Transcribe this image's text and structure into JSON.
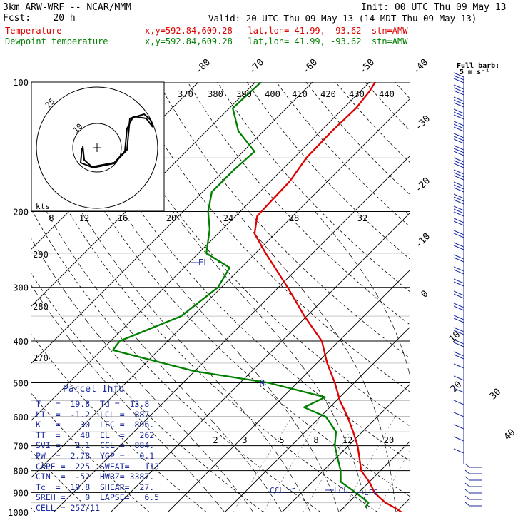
{
  "header": {
    "model": "3km ARW-WRF -- NCAR/MMM",
    "init": "Init: 00 UTC Thu 09 May 13",
    "fcst": "Fcst:    20 h",
    "valid": "Valid: 20 UTC Thu 09 May 13 (14 MDT Thu 09 May 13)",
    "temp_label": "Temperature",
    "temp_loc": "x,y=592.84,609.28   lat,lon= 41.99, -93.62  stn=AMW",
    "dew_label": "Dewpoint temperature",
    "dew_loc": "x,y=592.84,609.28   lat,lon= 41.99, -93.62  stn=AMW"
  },
  "colors": {
    "temperature": "#e00000",
    "dewpoint": "#008000",
    "parcel": "#1c2ca0",
    "grid": "#000000"
  },
  "parcel_info": {
    "title": "Parcel Info",
    "rows": [
      "T   =  19.8  Td =  13.8",
      "LI  =  -1.2  LCL =  887.",
      "K   =    30  LFC =  896.",
      "TT  =    48  EL  =   262",
      "SVI =   2.1  CCL =  884.",
      "PW  =  2.78  YGP =   0.1",
      "CAPE =  225  SWEAT=   113",
      "CIN  =  -52  HWBZ= 3387.",
      "Tc  =  19.8  SHEAR=  27.",
      "SREH =    0  LAPSE=   6.5",
      "CELL = 252/11"
    ]
  },
  "chart_data": {
    "type": "skew-t",
    "pressure_ticks": [
      "100",
      "200",
      "300",
      "400",
      "500",
      "600",
      "700",
      "800",
      "900",
      "1000"
    ],
    "isotherm_labels": [
      "-80",
      "-70",
      "-60",
      "-50",
      "-40",
      "-30",
      "-20",
      "-10",
      "0",
      "10",
      "20",
      "30",
      "40"
    ],
    "theta_labels": [
      "370",
      "380",
      "390",
      "400",
      "410",
      "420",
      "430",
      "440"
    ],
    "theta_left_labels": [
      "290",
      "280",
      "270"
    ],
    "mixing_ratio_labels": [
      "2",
      "3",
      "5",
      "8",
      "12",
      "20"
    ],
    "hodograph": {
      "speed_unit": "kts",
      "ring_labels": [
        "25",
        "10"
      ],
      "speed_ticks": [
        "8",
        "12",
        "16",
        "20",
        "24",
        "28",
        "32"
      ]
    },
    "wind_key": {
      "line1": "Full barb:",
      "line2": "5 m s⁻¹"
    },
    "markers": {
      "el": "EL",
      "m": "M",
      "ccl": "CCL",
      "lcl": "LCL",
      "lfc": "LFC"
    },
    "temperature": [
      {
        "p": 1000,
        "t": 21.0
      },
      {
        "p": 985,
        "t": 19.8
      },
      {
        "p": 950,
        "t": 16.5
      },
      {
        "p": 925,
        "t": 14.6
      },
      {
        "p": 900,
        "t": 12.8
      },
      {
        "p": 850,
        "t": 10.0
      },
      {
        "p": 800,
        "t": 6.6
      },
      {
        "p": 750,
        "t": 4.2
      },
      {
        "p": 700,
        "t": 1.6
      },
      {
        "p": 650,
        "t": -1.6
      },
      {
        "p": 600,
        "t": -5.2
      },
      {
        "p": 550,
        "t": -9.4
      },
      {
        "p": 500,
        "t": -13.4
      },
      {
        "p": 450,
        "t": -18.2
      },
      {
        "p": 400,
        "t": -23.0
      },
      {
        "p": 350,
        "t": -30.4
      },
      {
        "p": 300,
        "t": -38.4
      },
      {
        "p": 250,
        "t": -48.2
      },
      {
        "p": 225,
        "t": -53.6
      },
      {
        "p": 205,
        "t": -56.2
      },
      {
        "p": 190,
        "t": -56.4
      },
      {
        "p": 170,
        "t": -56.6
      },
      {
        "p": 150,
        "t": -57.8
      },
      {
        "p": 130,
        "t": -58.0
      },
      {
        "p": 115,
        "t": -57.8
      },
      {
        "p": 105,
        "t": -58.4
      },
      {
        "p": 100,
        "t": -59.0
      }
    ],
    "dewpoint": [
      {
        "p": 975,
        "t": 13.8
      },
      {
        "p": 950,
        "t": 13.5
      },
      {
        "p": 900,
        "t": 9.5
      },
      {
        "p": 850,
        "t": 5.0
      },
      {
        "p": 800,
        "t": 3.0
      },
      {
        "p": 700,
        "t": -2.4
      },
      {
        "p": 650,
        "t": -4.6
      },
      {
        "p": 600,
        "t": -9.0
      },
      {
        "p": 570,
        "t": -14.5
      },
      {
        "p": 540,
        "t": -12.6
      },
      {
        "p": 500,
        "t": -25.0
      },
      {
        "p": 470,
        "t": -40.0
      },
      {
        "p": 420,
        "t": -58.0
      },
      {
        "p": 400,
        "t": -58.4
      },
      {
        "p": 350,
        "t": -52.0
      },
      {
        "p": 300,
        "t": -50.6
      },
      {
        "p": 270,
        "t": -52.0
      },
      {
        "p": 250,
        "t": -58.6
      },
      {
        "p": 220,
        "t": -62.2
      },
      {
        "p": 200,
        "t": -65.6
      },
      {
        "p": 180,
        "t": -68.4
      },
      {
        "p": 160,
        "t": -68.4
      },
      {
        "p": 145,
        "t": -68.0
      },
      {
        "p": 130,
        "t": -74.4
      },
      {
        "p": 115,
        "t": -79.4
      },
      {
        "p": 100,
        "t": -79.0
      }
    ]
  }
}
